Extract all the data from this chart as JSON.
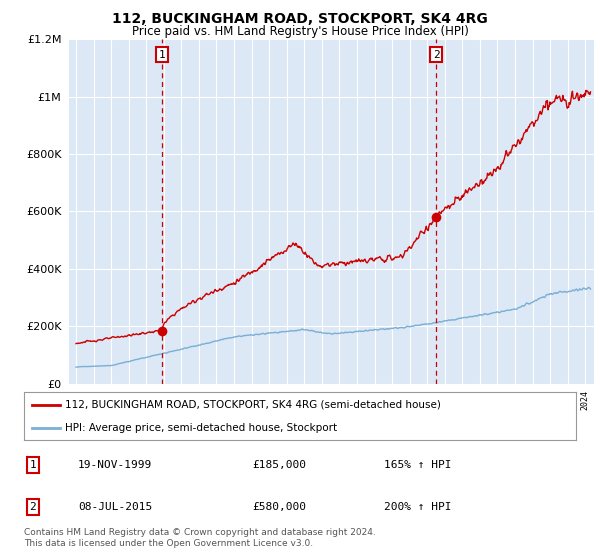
{
  "title": "112, BUCKINGHAM ROAD, STOCKPORT, SK4 4RG",
  "subtitle": "Price paid vs. HM Land Registry's House Price Index (HPI)",
  "footnote": "Contains HM Land Registry data © Crown copyright and database right 2024.\nThis data is licensed under the Open Government Licence v3.0.",
  "legend_line1": "112, BUCKINGHAM ROAD, STOCKPORT, SK4 4RG (semi-detached house)",
  "legend_line2": "HPI: Average price, semi-detached house, Stockport",
  "transaction1_date": "19-NOV-1999",
  "transaction1_price": "£185,000",
  "transaction1_hpi": "165% ↑ HPI",
  "transaction2_date": "08-JUL-2015",
  "transaction2_price": "£580,000",
  "transaction2_hpi": "200% ↑ HPI",
  "transaction1_year": 1999.88,
  "transaction2_year": 2015.52,
  "transaction1_value": 185000,
  "transaction2_value": 580000,
  "ylim": [
    0,
    1200000
  ],
  "xlim": [
    1994.6,
    2024.5
  ],
  "background_color": "#ffffff",
  "plot_bg_color": "#dce8f5",
  "red_color": "#cc0000",
  "blue_color": "#7aafd4",
  "grid_color": "#ffffff",
  "dashed_line_color": "#cc0000"
}
